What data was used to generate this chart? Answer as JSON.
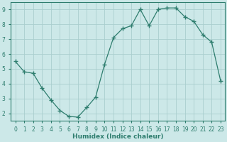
{
  "x": [
    0,
    1,
    2,
    3,
    4,
    5,
    6,
    7,
    8,
    9,
    10,
    11,
    12,
    13,
    14,
    15,
    16,
    17,
    18,
    19,
    20,
    21,
    22,
    23
  ],
  "y": [
    5.5,
    4.8,
    4.7,
    3.7,
    2.9,
    2.2,
    1.8,
    1.75,
    2.4,
    3.1,
    5.3,
    7.1,
    7.7,
    7.9,
    9.0,
    7.9,
    9.0,
    9.1,
    9.1,
    8.5,
    8.2,
    7.3,
    6.8,
    4.2
  ],
  "line_color": "#2e7d6e",
  "marker": "+",
  "marker_size": 4,
  "bg_color": "#cce8e8",
  "grid_color": "#aacece",
  "axis_color": "#2e7d6e",
  "tick_color": "#2e7d6e",
  "xlabel": "Humidex (Indice chaleur)",
  "xlim": [
    -0.5,
    23.5
  ],
  "ylim": [
    1.5,
    9.5
  ],
  "yticks": [
    2,
    3,
    4,
    5,
    6,
    7,
    8,
    9
  ],
  "xticks": [
    0,
    1,
    2,
    3,
    4,
    5,
    6,
    7,
    8,
    9,
    10,
    11,
    12,
    13,
    14,
    15,
    16,
    17,
    18,
    19,
    20,
    21,
    22,
    23
  ],
  "xlabel_fontsize": 6.5,
  "tick_fontsize": 5.5
}
